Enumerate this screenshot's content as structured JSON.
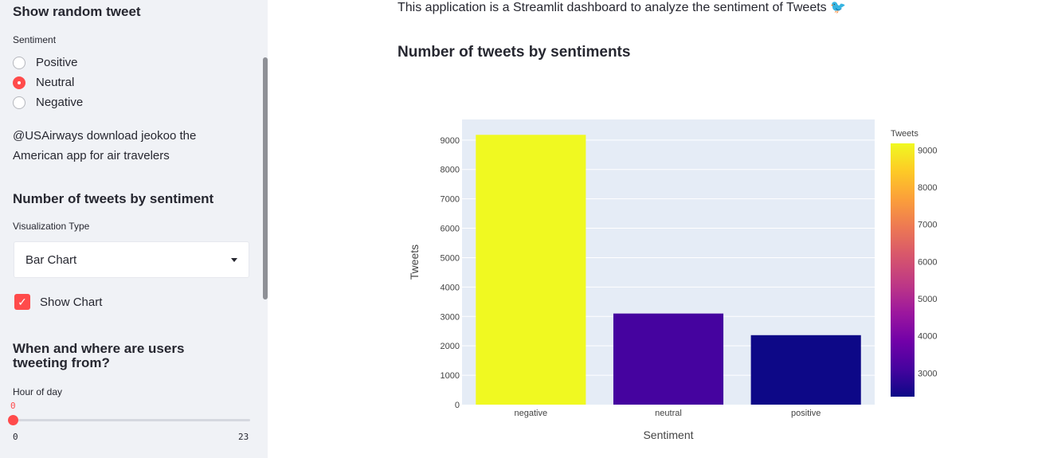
{
  "sidebar": {
    "random_tweet_heading": "Show random tweet",
    "sentiment_label": "Sentiment",
    "sentiment_options": [
      {
        "label": "Positive",
        "selected": false
      },
      {
        "label": "Neutral",
        "selected": true
      },
      {
        "label": "Negative",
        "selected": false
      }
    ],
    "tweet_line1": "@USAirways download jeokoo the",
    "tweet_line2": "American app for air travelers",
    "count_heading": "Number of tweets by sentiment",
    "viz_label": "Visualization Type",
    "viz_value": "Bar Chart",
    "show_chart_label": "Show Chart",
    "show_chart_checked": true,
    "when_heading_line1": "When and where are users",
    "when_heading_line2": "tweeting from?",
    "hour_label": "Hour of day",
    "hour_value": "0",
    "hour_min": "0",
    "hour_max": "23",
    "accent_color": "#ff4b4b"
  },
  "main": {
    "description": "This application is a Streamlit dashboard to analyze the sentiment of Tweets",
    "description_emoji": "🐦",
    "chart_heading": "Number of tweets by sentiments"
  },
  "chart_data": {
    "type": "bar",
    "categories": [
      "negative",
      "neutral",
      "positive"
    ],
    "values": [
      9178,
      3099,
      2363
    ],
    "xlabel": "Sentiment",
    "ylabel": "Tweets",
    "ylim": [
      0,
      9700
    ],
    "yticks": [
      0,
      1000,
      2000,
      3000,
      4000,
      5000,
      6000,
      7000,
      8000,
      9000
    ],
    "grid": true,
    "colorbar": {
      "title": "Tweets",
      "ticks": [
        3000,
        4000,
        5000,
        6000,
        7000,
        8000,
        9000
      ],
      "range": [
        2363,
        9178
      ],
      "colorscale": "plasma"
    }
  }
}
